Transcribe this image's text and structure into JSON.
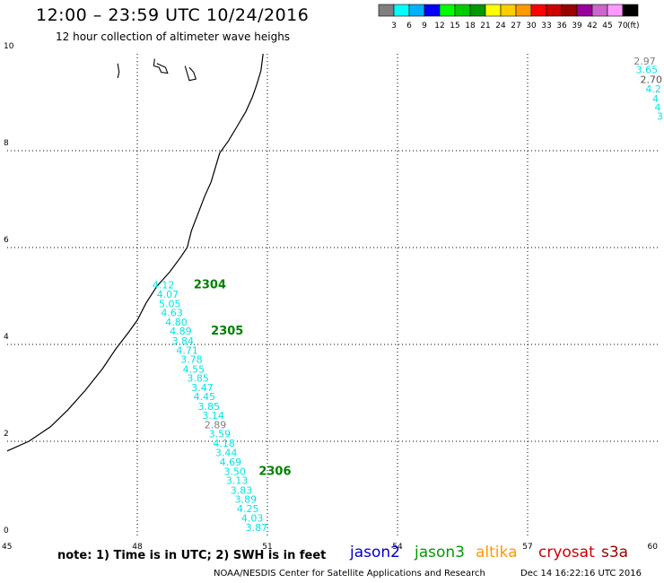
{
  "header": {
    "title": "12:00 – 23:59 UTC 10/24/2016",
    "subtitle": "12 hour collection of altimeter wave heighs"
  },
  "colorbar": {
    "colors": [
      "#7f7f7f",
      "#00ffff",
      "#00b2ff",
      "#0000ff",
      "#00ff00",
      "#00cc00",
      "#009900",
      "#ffff00",
      "#ffcc00",
      "#ff9900",
      "#ff0000",
      "#cc0000",
      "#990000",
      "#990099",
      "#cc66cc",
      "#ff99ff",
      "#000000"
    ],
    "labels": [
      "3",
      "6",
      "9",
      "12",
      "15",
      "18",
      "21",
      "24",
      "27",
      "30",
      "33",
      "36",
      "39",
      "42",
      "45",
      "70"
    ],
    "unit": "(ft)"
  },
  "footer": {
    "note": "note: 1) Time is in UTC; 2) SWH is in feet",
    "credit": "NOAA/NESDIS Center for Satellite Applications and Research",
    "timestamp": "Dec 14 16:22:16 UTC 2016"
  },
  "satellites": [
    {
      "name": "jason2",
      "color": "#0000cc"
    },
    {
      "name": "jason3",
      "color": "#009900"
    },
    {
      "name": "altika",
      "color": "#ff9900"
    },
    {
      "name": "cryosat",
      "color": "#cc0000"
    },
    {
      "name": "s3a",
      "color": "#990000"
    }
  ],
  "chart_data": {
    "type": "scatter",
    "xlim": [
      45,
      60
    ],
    "ylim": [
      0,
      10
    ],
    "x_ticks": [
      "45",
      "48",
      "51",
      "54",
      "57",
      "60"
    ],
    "y_ticks": [
      "0",
      "2",
      "4",
      "6",
      "8",
      "10"
    ],
    "grid": true,
    "track_points": [
      {
        "lon": 48.6,
        "lat": 5.16,
        "value": "4.12",
        "color": "#00e5e5"
      },
      {
        "lon": 48.7,
        "lat": 4.96,
        "value": "4.07",
        "color": "#00e5e5"
      },
      {
        "lon": 48.75,
        "lat": 4.77,
        "value": "5.05",
        "color": "#00e5e5"
      },
      {
        "lon": 48.8,
        "lat": 4.58,
        "value": "4.63",
        "color": "#00e5e5"
      },
      {
        "lon": 48.9,
        "lat": 4.39,
        "value": "4.80",
        "color": "#00e5e5"
      },
      {
        "lon": 49.0,
        "lat": 4.2,
        "value": "4.89",
        "color": "#00e5e5"
      },
      {
        "lon": 49.05,
        "lat": 4.0,
        "value": "3.84",
        "color": "#00e5e5"
      },
      {
        "lon": 49.15,
        "lat": 3.81,
        "value": "4.71",
        "color": "#00e5e5"
      },
      {
        "lon": 49.25,
        "lat": 3.62,
        "value": "3.78",
        "color": "#00e5e5"
      },
      {
        "lon": 49.3,
        "lat": 3.42,
        "value": "4.55",
        "color": "#00e5e5"
      },
      {
        "lon": 49.4,
        "lat": 3.23,
        "value": "3.85",
        "color": "#00e5e5"
      },
      {
        "lon": 49.5,
        "lat": 3.04,
        "value": "3.47",
        "color": "#00e5e5"
      },
      {
        "lon": 49.55,
        "lat": 2.85,
        "value": "4.45",
        "color": "#00e5e5"
      },
      {
        "lon": 49.65,
        "lat": 2.65,
        "value": "3.85",
        "color": "#00e5e5"
      },
      {
        "lon": 49.75,
        "lat": 2.46,
        "value": "3.14",
        "color": "#00e5e5"
      },
      {
        "lon": 49.8,
        "lat": 2.27,
        "value": "2.89",
        "color": "#7f7f7f"
      },
      {
        "lon": 49.9,
        "lat": 2.08,
        "value": "3.59",
        "color": "#00e5e5"
      },
      {
        "lon": 50.0,
        "lat": 1.89,
        "value": "4.18",
        "color": "#00e5e5"
      },
      {
        "lon": 50.05,
        "lat": 1.69,
        "value": "3.44",
        "color": "#00e5e5"
      },
      {
        "lon": 50.15,
        "lat": 1.5,
        "value": "4.69",
        "color": "#00e5e5"
      },
      {
        "lon": 50.25,
        "lat": 1.31,
        "value": "3.50",
        "color": "#00e5e5"
      },
      {
        "lon": 50.3,
        "lat": 1.12,
        "value": "3.13",
        "color": "#00e5e5"
      },
      {
        "lon": 50.4,
        "lat": 0.92,
        "value": "3.83",
        "color": "#00e5e5"
      },
      {
        "lon": 50.5,
        "lat": 0.73,
        "value": "3.89",
        "color": "#00e5e5"
      },
      {
        "lon": 50.55,
        "lat": 0.54,
        "value": "4.25",
        "color": "#00e5e5"
      },
      {
        "lon": 50.65,
        "lat": 0.34,
        "value": "4.03",
        "color": "#00e5e5"
      },
      {
        "lon": 50.75,
        "lat": 0.15,
        "value": "3.87",
        "color": "#00e5e5"
      },
      {
        "lon": 59.7,
        "lat": 9.78,
        "value": "2.97",
        "color": "#7f7f7f"
      },
      {
        "lon": 59.75,
        "lat": 9.6,
        "value": "3.65",
        "color": "#00e5e5"
      },
      {
        "lon": 59.85,
        "lat": 9.4,
        "value": "2.70",
        "color": "#555555"
      },
      {
        "lon": 59.9,
        "lat": 9.2,
        "value": "4.2",
        "color": "#00e5e5"
      },
      {
        "lon": 59.95,
        "lat": 9.0,
        "value": "4",
        "color": "#00e5e5"
      },
      {
        "lon": 60.0,
        "lat": 8.82,
        "value": "4",
        "color": "#00e5e5"
      },
      {
        "lon": 60.05,
        "lat": 8.64,
        "value": "3",
        "color": "#00e5e5"
      }
    ],
    "time_labels": [
      {
        "lon": 49.3,
        "lat": 5.16,
        "text": "2304",
        "color": "#008000"
      },
      {
        "lon": 49.7,
        "lat": 4.2,
        "text": "2305",
        "color": "#008000"
      },
      {
        "lon": 50.8,
        "lat": 1.31,
        "text": "2306",
        "color": "#008000"
      }
    ],
    "coastline": [
      [
        45.0,
        1.8
      ],
      [
        45.5,
        2.0
      ],
      [
        46.0,
        2.3
      ],
      [
        46.4,
        2.65
      ],
      [
        46.8,
        3.05
      ],
      [
        47.2,
        3.5
      ],
      [
        47.5,
        3.9
      ],
      [
        47.8,
        4.25
      ],
      [
        48.0,
        4.5
      ],
      [
        48.2,
        4.85
      ],
      [
        48.45,
        5.2
      ],
      [
        48.75,
        5.5
      ],
      [
        49.0,
        5.8
      ],
      [
        49.15,
        6.0
      ],
      [
        49.25,
        6.35
      ],
      [
        49.4,
        6.7
      ],
      [
        49.55,
        7.05
      ],
      [
        49.7,
        7.35
      ],
      [
        49.8,
        7.65
      ],
      [
        49.9,
        7.95
      ],
      [
        50.1,
        8.2
      ],
      [
        50.3,
        8.5
      ],
      [
        50.5,
        8.8
      ],
      [
        50.65,
        9.1
      ],
      [
        50.75,
        9.35
      ],
      [
        50.85,
        9.65
      ],
      [
        50.9,
        10.0
      ]
    ],
    "islands": [
      [
        [
          47.55,
          9.8
        ],
        [
          47.58,
          9.62
        ],
        [
          47.55,
          9.5
        ]
      ],
      [
        [
          48.4,
          9.9
        ],
        [
          48.38,
          9.75
        ],
        [
          48.5,
          9.72
        ],
        [
          48.55,
          9.62
        ],
        [
          48.7,
          9.6
        ],
        [
          48.65,
          9.72
        ],
        [
          48.45,
          9.8
        ]
      ],
      [
        [
          49.1,
          9.75
        ],
        [
          49.15,
          9.6
        ],
        [
          49.2,
          9.45
        ],
        [
          49.35,
          9.48
        ],
        [
          49.3,
          9.62
        ],
        [
          49.2,
          9.72
        ]
      ]
    ]
  }
}
